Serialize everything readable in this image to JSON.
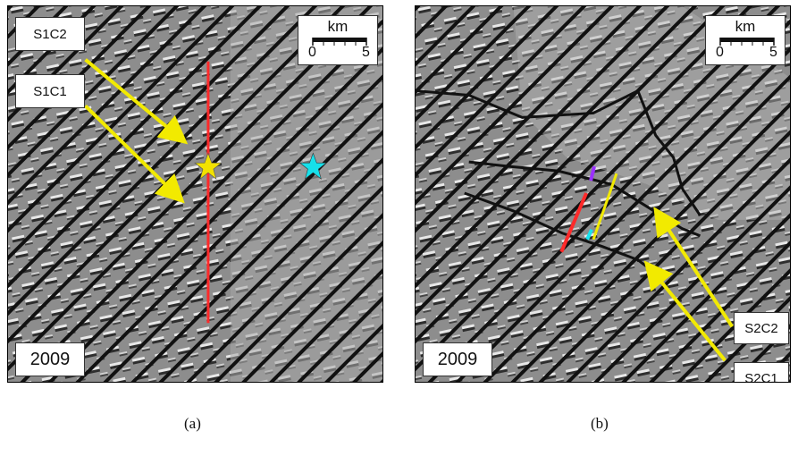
{
  "panel_a": {
    "caption": "(a)",
    "year": "2009",
    "labels": {
      "c1": "S1C1",
      "c2": "S1C2"
    },
    "scale": {
      "unit": "km",
      "min": "0",
      "max": "5"
    }
  },
  "panel_b": {
    "caption": "(b)",
    "year": "2009",
    "labels": {
      "c1": "S2C1",
      "c2": "S2C2"
    },
    "scale": {
      "unit": "km",
      "min": "0",
      "max": "5"
    }
  },
  "colors": {
    "arrow": "#f2ea00",
    "profile_line": "#ff2a2a",
    "star_primary": "#f2e200",
    "star_secondary": "#16e0ea",
    "segment_purple": "#9b30ff",
    "segment_cyan": "#18e4f0",
    "stripe": "#111111"
  }
}
